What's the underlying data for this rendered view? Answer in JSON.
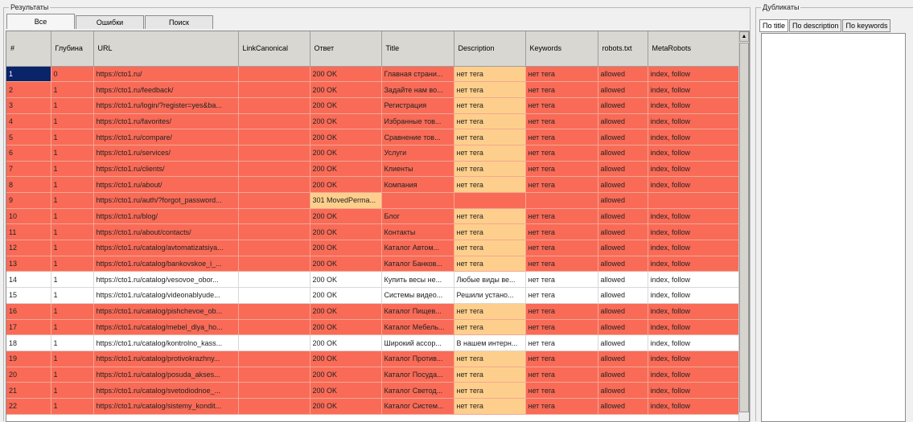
{
  "results": {
    "title": "Результаты",
    "tabs": [
      "Все",
      "Ошибки",
      "Поиск"
    ],
    "columns": [
      "#",
      "Глубина",
      "URL",
      "LinkCanonical",
      "Ответ",
      "Title",
      "Description",
      "Keywords",
      "robots.txt",
      "MetaRobots"
    ],
    "rows": [
      {
        "n": "1",
        "depth": "0",
        "url": "https://cto1.ru/",
        "canon": "",
        "resp": "200 OK",
        "title": "Главная страни...",
        "desc": "нет тега",
        "kw": "нет тега",
        "robots": "allowed",
        "meta": "index, follow",
        "style": "red",
        "descOrange": true,
        "sel": true
      },
      {
        "n": "2",
        "depth": "1",
        "url": "https://cto1.ru/feedback/",
        "canon": "",
        "resp": "200 OK",
        "title": "Задайте нам во...",
        "desc": "нет тега",
        "kw": "нет тега",
        "robots": "allowed",
        "meta": "index, follow",
        "style": "red",
        "descOrange": true
      },
      {
        "n": "3",
        "depth": "1",
        "url": "https://cto1.ru/login/?register=yes&ba...",
        "canon": "",
        "resp": "200 OK",
        "title": "Регистрация",
        "desc": "нет тега",
        "kw": "нет тега",
        "robots": "allowed",
        "meta": "index, follow",
        "style": "red",
        "descOrange": true
      },
      {
        "n": "4",
        "depth": "1",
        "url": "https://cto1.ru/favorites/",
        "canon": "",
        "resp": "200 OK",
        "title": "Избранные тов...",
        "desc": "нет тега",
        "kw": "нет тега",
        "robots": "allowed",
        "meta": "index, follow",
        "style": "red",
        "descOrange": true
      },
      {
        "n": "5",
        "depth": "1",
        "url": "https://cto1.ru/compare/",
        "canon": "",
        "resp": "200 OK",
        "title": "Сравнение тов...",
        "desc": "нет тега",
        "kw": "нет тега",
        "robots": "allowed",
        "meta": "index, follow",
        "style": "red",
        "descOrange": true
      },
      {
        "n": "6",
        "depth": "1",
        "url": "https://cto1.ru/services/",
        "canon": "",
        "resp": "200 OK",
        "title": "Услуги",
        "desc": "нет тега",
        "kw": "нет тега",
        "robots": "allowed",
        "meta": "index, follow",
        "style": "red",
        "descOrange": true
      },
      {
        "n": "7",
        "depth": "1",
        "url": "https://cto1.ru/clients/",
        "canon": "",
        "resp": "200 OK",
        "title": "Клиенты",
        "desc": "нет тега",
        "kw": "нет тега",
        "robots": "allowed",
        "meta": "index, follow",
        "style": "red",
        "descOrange": true
      },
      {
        "n": "8",
        "depth": "1",
        "url": "https://cto1.ru/about/",
        "canon": "",
        "resp": "200 OK",
        "title": "Компания",
        "desc": "нет тега",
        "kw": "нет тега",
        "robots": "allowed",
        "meta": "index, follow",
        "style": "red",
        "descOrange": true
      },
      {
        "n": "9",
        "depth": "1",
        "url": "https://cto1.ru/auth/?forgot_password...",
        "canon": "",
        "resp": "301 MovedPerma...",
        "title": "",
        "desc": "",
        "kw": "",
        "robots": "allowed",
        "meta": "",
        "style": "red",
        "respOrange": true
      },
      {
        "n": "10",
        "depth": "1",
        "url": "https://cto1.ru/blog/",
        "canon": "",
        "resp": "200 OK",
        "title": "Блог",
        "desc": "нет тега",
        "kw": "нет тега",
        "robots": "allowed",
        "meta": "index, follow",
        "style": "red",
        "descOrange": true
      },
      {
        "n": "11",
        "depth": "1",
        "url": "https://cto1.ru/about/contacts/",
        "canon": "",
        "resp": "200 OK",
        "title": "Контакты",
        "desc": "нет тега",
        "kw": "нет тега",
        "robots": "allowed",
        "meta": "index, follow",
        "style": "red",
        "descOrange": true
      },
      {
        "n": "12",
        "depth": "1",
        "url": "https://cto1.ru/catalog/avtomatizatsiya...",
        "canon": "",
        "resp": "200 OK",
        "title": "Каталог Автом...",
        "desc": "нет тега",
        "kw": "нет тега",
        "robots": "allowed",
        "meta": "index, follow",
        "style": "red",
        "descOrange": true
      },
      {
        "n": "13",
        "depth": "1",
        "url": "https://cto1.ru/catalog/bankovskoe_i_...",
        "canon": "",
        "resp": "200 OK",
        "title": "Каталог Банков...",
        "desc": "нет тега",
        "kw": "нет тега",
        "robots": "allowed",
        "meta": "index, follow",
        "style": "red",
        "descOrange": true
      },
      {
        "n": "14",
        "depth": "1",
        "url": "https://cto1.ru/catalog/vesovoe_obor...",
        "canon": "",
        "resp": "200 OK",
        "title": "Купить весы не...",
        "desc": "Любые виды ве...",
        "kw": "нет тега",
        "robots": "allowed",
        "meta": "index, follow",
        "style": "white"
      },
      {
        "n": "15",
        "depth": "1",
        "url": "https://cto1.ru/catalog/videonablyude...",
        "canon": "",
        "resp": "200 OK",
        "title": "Системы видео...",
        "desc": "Решили устано...",
        "kw": "нет тега",
        "robots": "allowed",
        "meta": "index, follow",
        "style": "white"
      },
      {
        "n": "16",
        "depth": "1",
        "url": "https://cto1.ru/catalog/pishchevoe_ob...",
        "canon": "",
        "resp": "200 OK",
        "title": "Каталог Пищев...",
        "desc": "нет тега",
        "kw": "нет тега",
        "robots": "allowed",
        "meta": "index, follow",
        "style": "red",
        "descOrange": true
      },
      {
        "n": "17",
        "depth": "1",
        "url": "https://cto1.ru/catalog/mebel_dlya_ho...",
        "canon": "",
        "resp": "200 OK",
        "title": "Каталог Мебель...",
        "desc": "нет тега",
        "kw": "нет тега",
        "robots": "allowed",
        "meta": "index, follow",
        "style": "red",
        "descOrange": true
      },
      {
        "n": "18",
        "depth": "1",
        "url": "https://cto1.ru/catalog/kontrolno_kass...",
        "canon": "",
        "resp": "200 OK",
        "title": "Широкий ассор...",
        "desc": "В нашем интерн...",
        "kw": "нет тега",
        "robots": "allowed",
        "meta": "index, follow",
        "style": "white"
      },
      {
        "n": "19",
        "depth": "1",
        "url": "https://cto1.ru/catalog/protivokrazhny...",
        "canon": "",
        "resp": "200 OK",
        "title": "Каталог Против...",
        "desc": "нет тега",
        "kw": "нет тега",
        "robots": "allowed",
        "meta": "index, follow",
        "style": "red",
        "descOrange": true
      },
      {
        "n": "20",
        "depth": "1",
        "url": "https://cto1.ru/catalog/posuda_akses...",
        "canon": "",
        "resp": "200 OK",
        "title": "Каталог Посуда...",
        "desc": "нет тега",
        "kw": "нет тега",
        "robots": "allowed",
        "meta": "index, follow",
        "style": "red",
        "descOrange": true
      },
      {
        "n": "21",
        "depth": "1",
        "url": "https://cto1.ru/catalog/svetodiodnoe_...",
        "canon": "",
        "resp": "200 OK",
        "title": "Каталог Светод...",
        "desc": "нет тега",
        "kw": "нет тега",
        "robots": "allowed",
        "meta": "index, follow",
        "style": "red",
        "descOrange": true
      },
      {
        "n": "22",
        "depth": "1",
        "url": "https://cto1.ru/catalog/sistemy_kondit...",
        "canon": "",
        "resp": "200 OK",
        "title": "Каталог Систем...",
        "desc": "нет тега",
        "kw": "нет тега",
        "robots": "allowed",
        "meta": "index, follow",
        "style": "red",
        "descOrange": true
      }
    ]
  },
  "duplicates": {
    "title": "Дубликаты",
    "tabs": [
      "По title",
      "По description",
      "По keywords"
    ]
  }
}
